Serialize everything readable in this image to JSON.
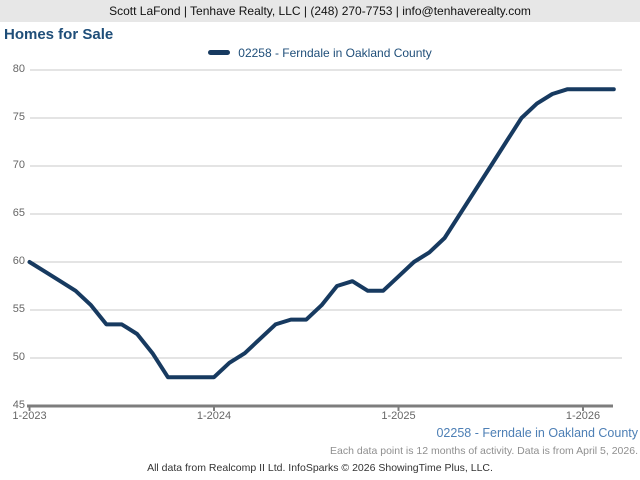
{
  "header": {
    "contact_line": "Scott LaFond | Tenhave Realty, LLC | (248) 270-7753 | info@tenhaverealty.com"
  },
  "footer": {
    "data_note": "Each data point is 12 months of activity. Data is from April 5, 2026.",
    "attribution": "All data from Realcomp II Ltd. InfoSparks © 2026 ShowingTime Plus, LLC."
  },
  "colors": {
    "line": "#173a60",
    "title": "#1f4e79",
    "legend-text": "#1f4e79",
    "series-label": "#4d7fb5",
    "header-bg": "#e7e7e7",
    "grid": "#c9c9c9",
    "axis": "#7d7d7d",
    "tick-label": "#666666",
    "note": "#8f8f8f",
    "attribution-text": "#333333"
  },
  "chart_data": {
    "type": "line",
    "title": "Homes for Sale",
    "ylim": [
      45,
      80
    ],
    "y_tick_step": 5,
    "y_tick_labels": [
      "45",
      "50",
      "55",
      "60",
      "65",
      "70",
      "75",
      "80"
    ],
    "x_ticks": [
      {
        "label": "1-2023",
        "month_index": 0
      },
      {
        "label": "1-2024",
        "month_index": 12
      },
      {
        "label": "1-2025",
        "month_index": 24
      },
      {
        "label": "1-2026",
        "month_index": 36
      }
    ],
    "grid": "horizontal",
    "legend_position": "top-center",
    "series": [
      {
        "name": "02258 - Ferndale in Oakland County",
        "color": "#173a60",
        "months": [
          "1-2023",
          "2-2023",
          "3-2023",
          "4-2023",
          "5-2023",
          "6-2023",
          "7-2023",
          "8-2023",
          "9-2023",
          "10-2023",
          "11-2023",
          "12-2023",
          "1-2024",
          "2-2024",
          "3-2024",
          "4-2024",
          "5-2024",
          "6-2024",
          "7-2024",
          "8-2024",
          "9-2024",
          "10-2024",
          "11-2024",
          "12-2024",
          "1-2025",
          "2-2025",
          "3-2025",
          "4-2025",
          "5-2025",
          "6-2025",
          "7-2025",
          "8-2025",
          "9-2025",
          "10-2025",
          "11-2025",
          "12-2025",
          "1-2026",
          "2-2026",
          "3-2026"
        ],
        "values": [
          60,
          59,
          58,
          57,
          55.5,
          53.5,
          53.5,
          52.5,
          50.5,
          48,
          48,
          48,
          48,
          49.5,
          50.5,
          52,
          53.5,
          54,
          54,
          55.5,
          57.5,
          58,
          57,
          57,
          58.5,
          60,
          61,
          62.5,
          65,
          67.5,
          70,
          72.5,
          75,
          76.5,
          77.5,
          78,
          78,
          78,
          78
        ]
      }
    ]
  }
}
